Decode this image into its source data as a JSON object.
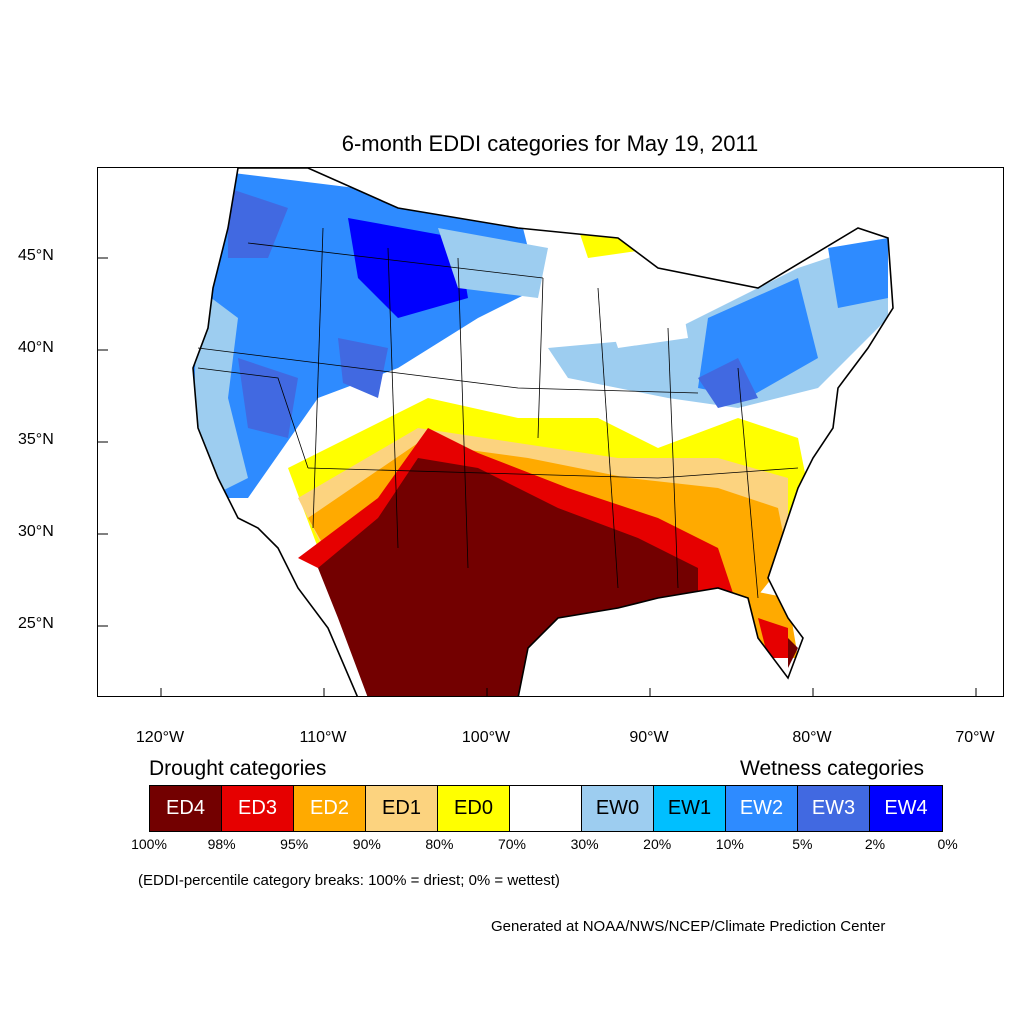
{
  "title": "6-month EDDI categories for May 19, 2011",
  "axes": {
    "lat_labels": [
      "45°N",
      "40°N",
      "35°N",
      "30°N",
      "25°N"
    ],
    "lon_labels": [
      "120°W",
      "110°W",
      "100°W",
      "90°W",
      "80°W",
      "70°W"
    ]
  },
  "legend": {
    "drought_heading": "Drought categories",
    "wetness_heading": "Wetness categories",
    "categories": [
      {
        "label": "ED4",
        "color": "#730000"
      },
      {
        "label": "ED3",
        "color": "#e60000"
      },
      {
        "label": "ED2",
        "color": "#ffaa00"
      },
      {
        "label": "ED1",
        "color": "#fcd37f"
      },
      {
        "label": "ED0",
        "color": "#ffff00"
      },
      {
        "label": "",
        "color": "#ffffff"
      },
      {
        "label": "EW0",
        "color": "#9dcdf0"
      },
      {
        "label": "EW1",
        "color": "#00bfff"
      },
      {
        "label": "EW2",
        "color": "#2e8bff"
      },
      {
        "label": "EW3",
        "color": "#4169e1"
      },
      {
        "label": "EW4",
        "color": "#0000ff"
      }
    ],
    "percentiles": [
      "100%",
      "98%",
      "95%",
      "90%",
      "80%",
      "70%",
      "30%",
      "20%",
      "10%",
      "5%",
      "2%",
      "0%"
    ]
  },
  "note": "(EDDI-percentile category breaks: 100% = driest; 0% = wettest)",
  "credit": "Generated at NOAA/NWS/NCEP/Climate Prediction Center"
}
